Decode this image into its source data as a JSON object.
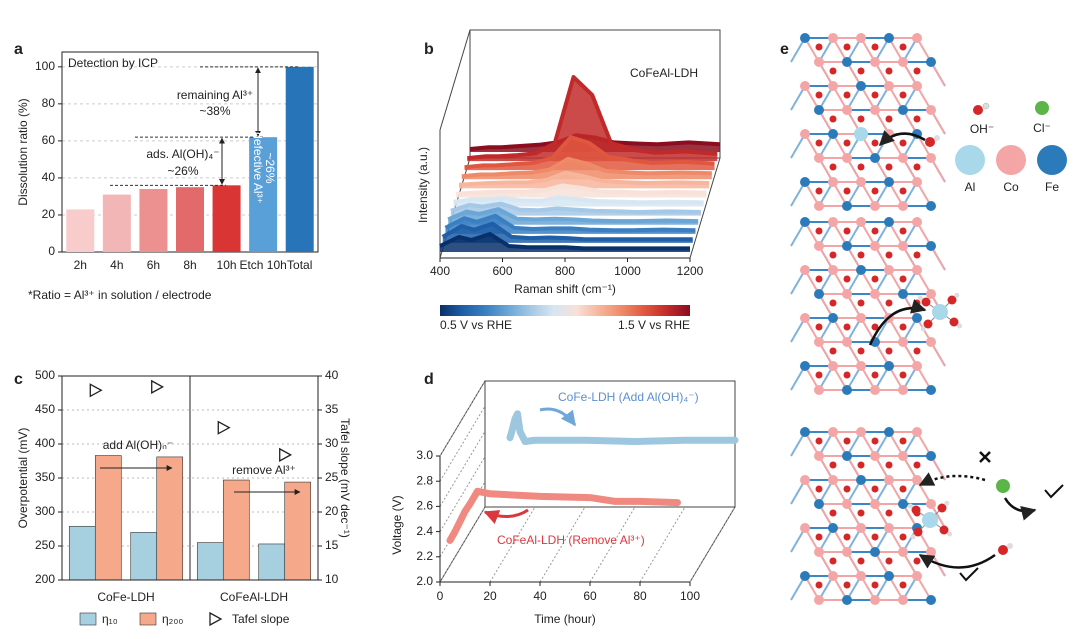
{
  "panel_labels": [
    "a",
    "b",
    "c",
    "d",
    "e"
  ],
  "chart_data": [
    {
      "type": "bar",
      "title": "Detection by ICP",
      "ylabel": "Dissolution ratio (%)",
      "categories": [
        "2h",
        "4h",
        "6h",
        "8h",
        "10h",
        "Etch 10h",
        "Total"
      ],
      "values": [
        23,
        31,
        34,
        35,
        36,
        62,
        100
      ],
      "colors": [
        "#f9cccc",
        "#f2b6b6",
        "#ec9090",
        "#e36a6a",
        "#d93535",
        "#5aa0d8",
        "#2874b8"
      ],
      "ylim": [
        0,
        108
      ],
      "yticks": [
        0,
        20,
        40,
        60,
        80,
        100
      ],
      "grid": true,
      "annotations": [
        "remaining Al³⁺",
        "~38%",
        "ads. Al(OH)₄⁻",
        "~26%",
        "defective Al³⁺",
        "~26%"
      ],
      "note": "*Ratio = Al³⁺ in solution / electrode"
    },
    {
      "type": "waterfall",
      "title": "CoFeAl-LDH",
      "xlabel": "Raman shift (cm⁻¹)",
      "ylabel": "Intensity (a.u.)",
      "x": [
        400,
        460,
        500,
        560,
        620,
        680,
        740,
        800,
        860,
        940,
        1000,
        1100,
        1200
      ],
      "xlim": [
        400,
        1200
      ],
      "xticks": [
        400,
        600,
        800,
        1000,
        1200
      ],
      "ylim": [
        0,
        16
      ],
      "series": [
        {
          "color": "#08306b",
          "values": [
            1,
            2.5,
            2,
            3,
            1,
            0.8,
            0.8,
            0.8,
            0.6,
            0.6,
            0.6,
            0.6,
            0.6
          ]
        },
        {
          "color": "#1f5fa8",
          "values": [
            1,
            2.8,
            2.2,
            3.2,
            1,
            0.8,
            0.9,
            0.8,
            0.6,
            0.6,
            0.6,
            0.6,
            0.6
          ]
        },
        {
          "color": "#3a7fc1",
          "values": [
            1,
            2.6,
            2,
            3,
            1,
            0.8,
            0.9,
            0.9,
            0.7,
            0.6,
            0.6,
            0.7,
            0.6
          ]
        },
        {
          "color": "#6aa6d6",
          "values": [
            0.9,
            2.2,
            1.8,
            2.6,
            1,
            0.9,
            1,
            0.9,
            0.7,
            0.6,
            0.6,
            0.7,
            0.6
          ]
        },
        {
          "color": "#a4c8e6",
          "values": [
            0.8,
            1.8,
            1.5,
            2,
            1,
            0.9,
            1.2,
            1,
            0.8,
            0.7,
            0.6,
            0.7,
            0.6
          ]
        },
        {
          "color": "#d6e6f2",
          "values": [
            0.8,
            1.2,
            1.2,
            1.4,
            1,
            1,
            1.5,
            1.2,
            0.9,
            0.8,
            0.7,
            0.8,
            0.7
          ]
        },
        {
          "color": "#f7e1d8",
          "values": [
            0.6,
            0.8,
            0.9,
            1,
            1,
            1.2,
            2,
            1.6,
            1,
            0.9,
            0.8,
            0.9,
            0.8
          ]
        },
        {
          "color": "#f7b59b",
          "values": [
            0.6,
            0.8,
            0.9,
            1,
            1,
            1.4,
            2.6,
            2,
            1.2,
            1,
            0.9,
            1,
            0.9
          ]
        },
        {
          "color": "#ef8a68",
          "values": [
            0.5,
            0.8,
            0.8,
            1,
            1.1,
            1.6,
            3.4,
            2.6,
            1.4,
            1.1,
            1,
            1.1,
            1
          ]
        },
        {
          "color": "#e0573f",
          "values": [
            0.5,
            0.8,
            0.8,
            1,
            1.2,
            2,
            5.5,
            4.5,
            2.2,
            1.6,
            1.2,
            1.4,
            1.1
          ]
        },
        {
          "color": "#c22a2a",
          "values": [
            0.5,
            0.8,
            0.8,
            1,
            1.3,
            3,
            14,
            11,
            3,
            1.8,
            1.4,
            1.6,
            1.2
          ]
        },
        {
          "color": "#8b0d1f",
          "values": [
            0.5,
            0.8,
            0.8,
            1,
            1.2,
            1.6,
            2.8,
            2.4,
            1.6,
            1.4,
            1.3,
            1.6,
            1.3
          ]
        }
      ],
      "colorbar_labels": [
        "0.5 V vs RHE",
        "1.5 V vs RHE"
      ]
    },
    {
      "type": "grouped_bar",
      "groups": [
        "CoFe-LDH",
        "CoFeAl-LDH"
      ],
      "ylabel": "Overpotential (mV)",
      "y2label": "Tafel slope (mV dec⁻¹)",
      "ylim": [
        200,
        500
      ],
      "yticks": [
        200,
        250,
        300,
        350,
        400,
        450,
        500
      ],
      "y2lim": [
        10,
        40
      ],
      "y2ticks": [
        10,
        15,
        20,
        25,
        30,
        35,
        40
      ],
      "grid": true,
      "series": [
        {
          "name": "η₁₀",
          "color": "#a6cfe0",
          "values": [
            279,
            270,
            255,
            253
          ]
        },
        {
          "name": "η₂₀₀",
          "color": "#f6a98a",
          "values": [
            383,
            381,
            347,
            344
          ]
        },
        {
          "name": "Tafel slope",
          "color": "#222222",
          "axis": "y2",
          "values": [
            37.9,
            38.4,
            32.4,
            28.4
          ]
        }
      ],
      "annotations": [
        "add Al(OH)ₙ⁻",
        "remove Al³⁺"
      ]
    },
    {
      "type": "line3d",
      "xlabel": "Time (hour)",
      "ylabel": "Voltage (V)",
      "xlim": [
        0,
        100
      ],
      "xticks": [
        0,
        20,
        40,
        60,
        80,
        100
      ],
      "ylim": [
        2,
        3
      ],
      "yticks": [
        {
          "value": 2,
          "label": "2.0"
        },
        2.2,
        2.4,
        2.6,
        2.8,
        {
          "value": 3,
          "label": "3.0"
        }
      ],
      "series": [
        {
          "name": "CoFe-LDH (Add Al(OH)₄⁻)",
          "color": "#9cc7df",
          "x": [
            10,
            11,
            12,
            13,
            14,
            16,
            20,
            40,
            60,
            80,
            100
          ],
          "values": [
            2.55,
            2.62,
            2.7,
            2.74,
            2.6,
            2.52,
            2.53,
            2.53,
            2.52,
            2.53,
            2.53
          ]
        },
        {
          "name": "CoFeAl-LDH (Remove Al³⁺)",
          "color": "#f08a80",
          "x": [
            4,
            6,
            8,
            10,
            12,
            15,
            20,
            40,
            60,
            70,
            80,
            95
          ],
          "values": [
            2.33,
            2.4,
            2.48,
            2.56,
            2.62,
            2.72,
            2.7,
            2.68,
            2.67,
            2.64,
            2.64,
            2.63
          ]
        }
      ]
    }
  ],
  "diagram": {
    "legend": [
      "OH⁻",
      "Cl⁻",
      "Al",
      "Co",
      "Fe"
    ]
  }
}
